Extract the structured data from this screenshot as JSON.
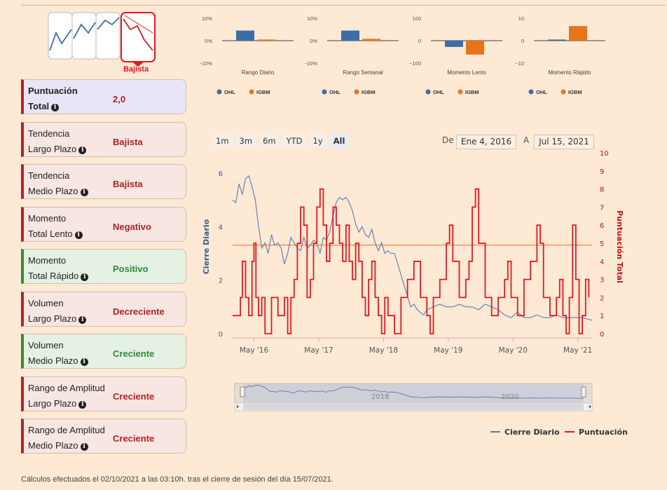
{
  "trend_icon": {
    "label": "Bajista",
    "highlight_color": "#e0191e"
  },
  "cards": [
    {
      "line1": "Puntuación",
      "line2": "Total",
      "value": "2,0",
      "kind": "total"
    },
    {
      "line1": "Tendencia",
      "line2": "Largo Plazo",
      "value": "Bajista",
      "kind": "neg"
    },
    {
      "line1": "Tendencia",
      "line2": "Medio Plazo",
      "value": "Bajista",
      "kind": "neg"
    },
    {
      "line1": "Momento",
      "line2": "Total Lento",
      "value": "Negativo",
      "kind": "neg"
    },
    {
      "line1": "Momento",
      "line2": "Total Rápido",
      "value": "Positivo",
      "kind": "pos"
    },
    {
      "line1": "Volumen",
      "line2": "Largo Plazo",
      "value": "Decreciente",
      "kind": "neg"
    },
    {
      "line1": "Volumen",
      "line2": "Medio Plazo",
      "value": "Creciente",
      "kind": "pos"
    },
    {
      "line1": "Rango de Amplitud",
      "line2": "Largo Plazo",
      "value": "Creciente",
      "kind": "neg"
    },
    {
      "line1": "Rango de Amplitud",
      "line2": "Medio Plazo",
      "value": "Creciente",
      "kind": "neg"
    }
  ],
  "range_buttons": [
    "1m",
    "3m",
    "6m",
    "YTD",
    "1y",
    "All"
  ],
  "active_range": "All",
  "date_from_label": "De",
  "date_from": "Ene 4, 2016",
  "date_to_label": "A",
  "date_to": "Jul 15, 2021",
  "navigator_labels": [
    "2018",
    "2020"
  ],
  "footer": "Cálculos efectuados el 02/10/2021 a las 03:10h. tras el cierre de sesión del día 15/07/2021.",
  "chart_data": [
    {
      "type": "bar",
      "title": "Rango Diario",
      "ytick_labels": [
        "10%",
        "0%",
        "−10%"
      ],
      "ylim": [
        -10,
        10
      ],
      "series": [
        {
          "name": "OHL",
          "values": [
            4.5
          ],
          "color": "#3d6da6"
        },
        {
          "name": "IGBM",
          "values": [
            0.5
          ],
          "color": "#e8741a"
        }
      ]
    },
    {
      "type": "bar",
      "title": "Rango Semanal",
      "ytick_labels": [
        "10%",
        "0%",
        "−10%"
      ],
      "ylim": [
        -10,
        10
      ],
      "series": [
        {
          "name": "OHL",
          "values": [
            4.5
          ],
          "color": "#3d6da6"
        },
        {
          "name": "IGBM",
          "values": [
            0.8
          ],
          "color": "#e8741a"
        }
      ]
    },
    {
      "type": "bar",
      "title": "Momento Lento",
      "ytick_labels": [
        "100",
        "0",
        "−100"
      ],
      "ylim": [
        -100,
        100
      ],
      "series": [
        {
          "name": "OHL",
          "values": [
            -28
          ],
          "color": "#3d6da6"
        },
        {
          "name": "IGBM",
          "values": [
            -62
          ],
          "color": "#e8741a"
        }
      ]
    },
    {
      "type": "bar",
      "title": "Momento Rápido",
      "ytick_labels": [
        "10",
        "0",
        "−10"
      ],
      "ylim": [
        -10,
        10
      ],
      "series": [
        {
          "name": "OHL",
          "values": [
            0.5
          ],
          "color": "#3d6da6"
        },
        {
          "name": "IGBM",
          "values": [
            6.5
          ],
          "color": "#e8741a"
        }
      ]
    },
    {
      "type": "line",
      "ylabel": "Cierre Diario",
      "y2label": "Puntuación Total",
      "ylim": [
        0,
        6.5
      ],
      "y2lim": [
        0,
        10
      ],
      "yticks": [
        0,
        2,
        4,
        6
      ],
      "y2ticks": [
        0,
        1,
        2,
        3,
        4,
        5,
        6,
        7,
        8,
        9,
        10
      ],
      "xlim": [
        2016.0,
        2021.55
      ],
      "xtick_labels": [
        "May '16",
        "May '17",
        "May '18",
        "May '19",
        "May '20",
        "May '21"
      ],
      "xtick_values": [
        2016.33,
        2017.33,
        2018.33,
        2019.33,
        2020.33,
        2021.33
      ],
      "reference_line_y2": 4.9,
      "legend": "bottom-right",
      "series": [
        {
          "name": "Cierre Diario",
          "axis": "left",
          "color": "#5b7bb0",
          "x": [
            2016.0,
            2016.05,
            2016.1,
            2016.15,
            2016.2,
            2016.25,
            2016.3,
            2016.35,
            2016.4,
            2016.45,
            2016.5,
            2016.55,
            2016.6,
            2016.65,
            2016.7,
            2016.75,
            2016.8,
            2016.85,
            2016.9,
            2016.95,
            2017.0,
            2017.05,
            2017.1,
            2017.15,
            2017.2,
            2017.25,
            2017.3,
            2017.35,
            2017.4,
            2017.45,
            2017.5,
            2017.55,
            2017.6,
            2017.65,
            2017.7,
            2017.75,
            2017.8,
            2017.85,
            2017.9,
            2017.95,
            2018.0,
            2018.05,
            2018.1,
            2018.15,
            2018.2,
            2018.25,
            2018.3,
            2018.35,
            2018.4,
            2018.45,
            2018.5,
            2018.55,
            2018.6,
            2018.65,
            2018.7,
            2018.75,
            2018.8,
            2018.85,
            2018.9,
            2018.95,
            2019.0,
            2019.1,
            2019.2,
            2019.3,
            2019.4,
            2019.5,
            2019.6,
            2019.7,
            2019.8,
            2019.9,
            2020.0,
            2020.1,
            2020.2,
            2020.3,
            2020.4,
            2020.5,
            2020.6,
            2020.7,
            2020.8,
            2020.9,
            2021.0,
            2021.1,
            2021.2,
            2021.3,
            2021.4,
            2021.55
          ],
          "y": [
            5.0,
            4.9,
            5.6,
            5.2,
            5.8,
            5.9,
            5.5,
            5.0,
            4.0,
            3.2,
            3.4,
            3.0,
            3.7,
            3.3,
            3.4,
            3.2,
            2.6,
            3.0,
            3.6,
            3.4,
            3.2,
            3.1,
            3.6,
            3.2,
            3.3,
            3.5,
            3.4,
            3.0,
            3.6,
            3.5,
            3.8,
            4.4,
            4.9,
            5.1,
            5.0,
            5.1,
            4.9,
            4.6,
            4.1,
            3.8,
            4.0,
            3.7,
            3.6,
            3.9,
            3.4,
            3.1,
            3.4,
            3.0,
            3.1,
            3.0,
            3.0,
            2.6,
            2.2,
            1.8,
            1.4,
            1.0,
            1.1,
            0.9,
            0.8,
            0.7,
            0.9,
            1.0,
            1.1,
            1.0,
            1.0,
            1.1,
            1.0,
            1.0,
            0.9,
            1.1,
            1.0,
            0.9,
            0.7,
            0.6,
            0.8,
            0.6,
            0.6,
            0.7,
            0.6,
            0.6,
            0.7,
            0.6,
            0.6,
            0.6,
            0.6,
            0.5
          ]
        },
        {
          "name": "Puntuación",
          "axis": "right",
          "color": "#e0191e",
          "step": true,
          "x": [
            2016.0,
            2016.08,
            2016.12,
            2016.15,
            2016.2,
            2016.25,
            2016.3,
            2016.33,
            2016.36,
            2016.4,
            2016.45,
            2016.5,
            2016.6,
            2016.7,
            2016.8,
            2016.85,
            2016.9,
            2016.95,
            2017.0,
            2017.05,
            2017.1,
            2017.15,
            2017.2,
            2017.25,
            2017.3,
            2017.35,
            2017.4,
            2017.45,
            2017.5,
            2017.55,
            2017.6,
            2017.65,
            2017.7,
            2017.75,
            2017.8,
            2017.85,
            2017.9,
            2017.95,
            2018.0,
            2018.05,
            2018.1,
            2018.15,
            2018.2,
            2018.25,
            2018.3,
            2018.35,
            2018.4,
            2018.5,
            2018.6,
            2018.7,
            2018.8,
            2018.9,
            2019.0,
            2019.05,
            2019.1,
            2019.2,
            2019.3,
            2019.35,
            2019.4,
            2019.5,
            2019.6,
            2019.65,
            2019.7,
            2019.75,
            2019.8,
            2019.9,
            2020.0,
            2020.1,
            2020.2,
            2020.25,
            2020.3,
            2020.4,
            2020.5,
            2020.6,
            2020.7,
            2020.75,
            2020.8,
            2020.9,
            2021.0,
            2021.05,
            2021.1,
            2021.15,
            2021.2,
            2021.25,
            2021.3,
            2021.35,
            2021.4,
            2021.45,
            2021.5
          ],
          "y": [
            1,
            1,
            2,
            4,
            2,
            1,
            4,
            5,
            2,
            1,
            2,
            0,
            2,
            1,
            2,
            0,
            2,
            3,
            5,
            7,
            6,
            2,
            3,
            5,
            7,
            8,
            6,
            4,
            5,
            7,
            6,
            5,
            4,
            6,
            4,
            3,
            5,
            4,
            2,
            1,
            3,
            4,
            2,
            1,
            0,
            2,
            1,
            0,
            2,
            3,
            4,
            2,
            1,
            0,
            2,
            3,
            5,
            6,
            4,
            2,
            3,
            4,
            7,
            8,
            5,
            2,
            1,
            2,
            3,
            4,
            2,
            1,
            3,
            4,
            6,
            5,
            2,
            1,
            2,
            3,
            1,
            0,
            2,
            6,
            3,
            0,
            1,
            3,
            2
          ]
        }
      ]
    }
  ]
}
